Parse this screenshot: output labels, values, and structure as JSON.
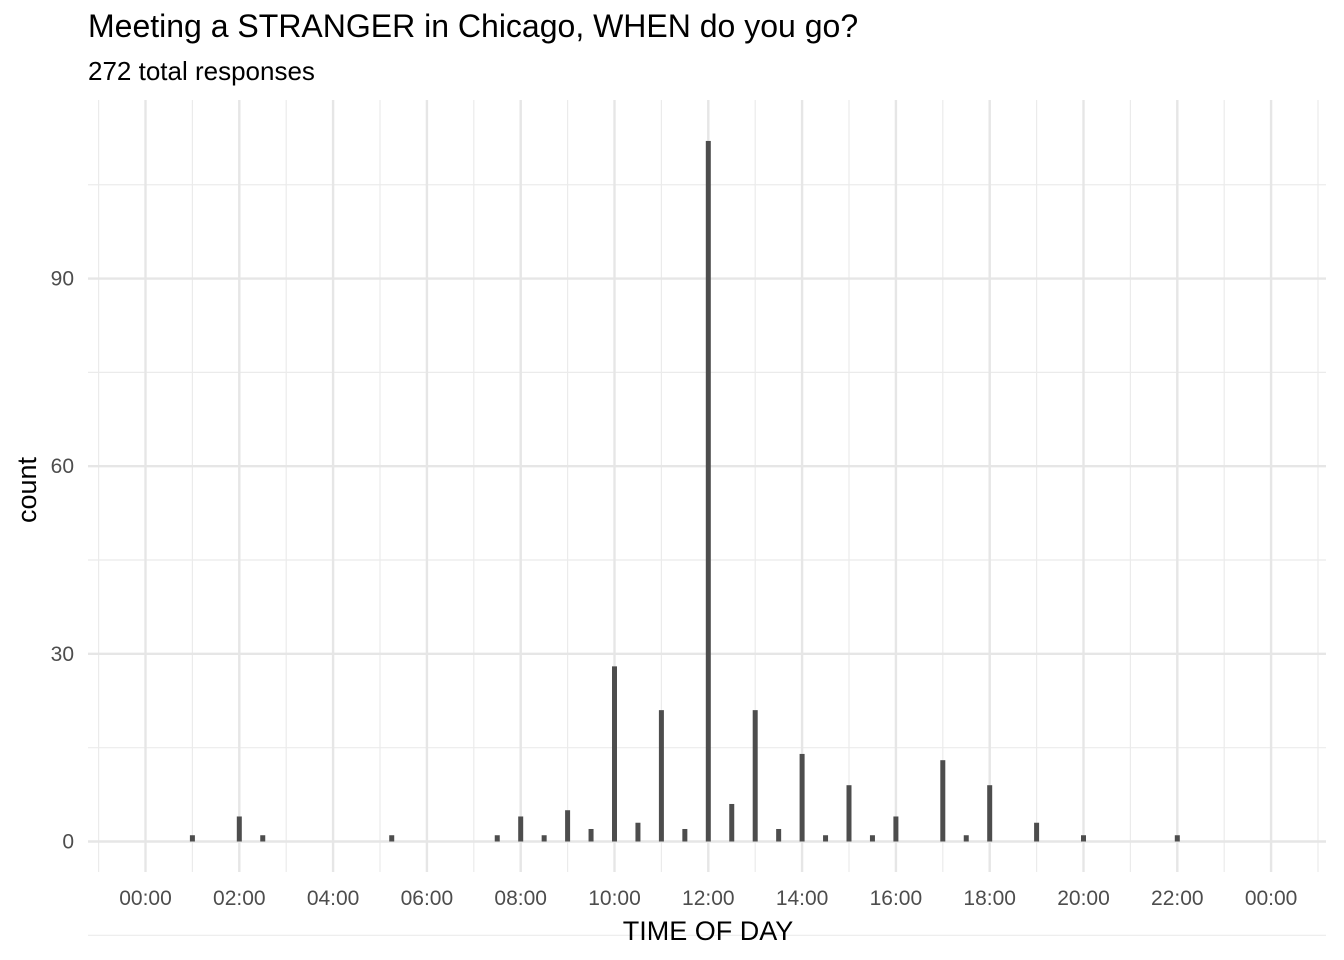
{
  "chart_data": {
    "type": "bar",
    "title": "Meeting a STRANGER in Chicago, WHEN do you go?",
    "subtitle": "272 total responses",
    "xlabel": "TIME OF DAY",
    "ylabel": "count",
    "x_unit": "hours",
    "xlim": [
      -1,
      25
    ],
    "ylim": [
      -6,
      120
    ],
    "x_ticks": [
      0,
      2,
      4,
      6,
      8,
      10,
      12,
      14,
      16,
      18,
      20,
      22,
      24
    ],
    "x_tick_labels": [
      "00:00",
      "02:00",
      "04:00",
      "06:00",
      "08:00",
      "10:00",
      "12:00",
      "14:00",
      "16:00",
      "18:00",
      "20:00",
      "22:00",
      "00:00"
    ],
    "y_ticks": [
      0,
      30,
      60,
      90
    ],
    "y_tick_labels": [
      "0",
      "30",
      "60",
      "90"
    ],
    "grid": true,
    "bar_color": "#4d4d4d",
    "x": [
      1,
      2,
      2.5,
      5.25,
      7.5,
      8,
      8.5,
      9,
      9.5,
      10,
      10.5,
      11,
      11.5,
      12,
      12.5,
      13,
      13.5,
      14,
      14.5,
      15,
      15.5,
      16,
      17,
      17.5,
      18,
      19,
      20,
      22
    ],
    "values": [
      1,
      4,
      1,
      1,
      1,
      4,
      1,
      5,
      2,
      28,
      3,
      21,
      2,
      112,
      6,
      21,
      2,
      14,
      1,
      9,
      1,
      4,
      13,
      1,
      9,
      3,
      1,
      1
    ]
  }
}
